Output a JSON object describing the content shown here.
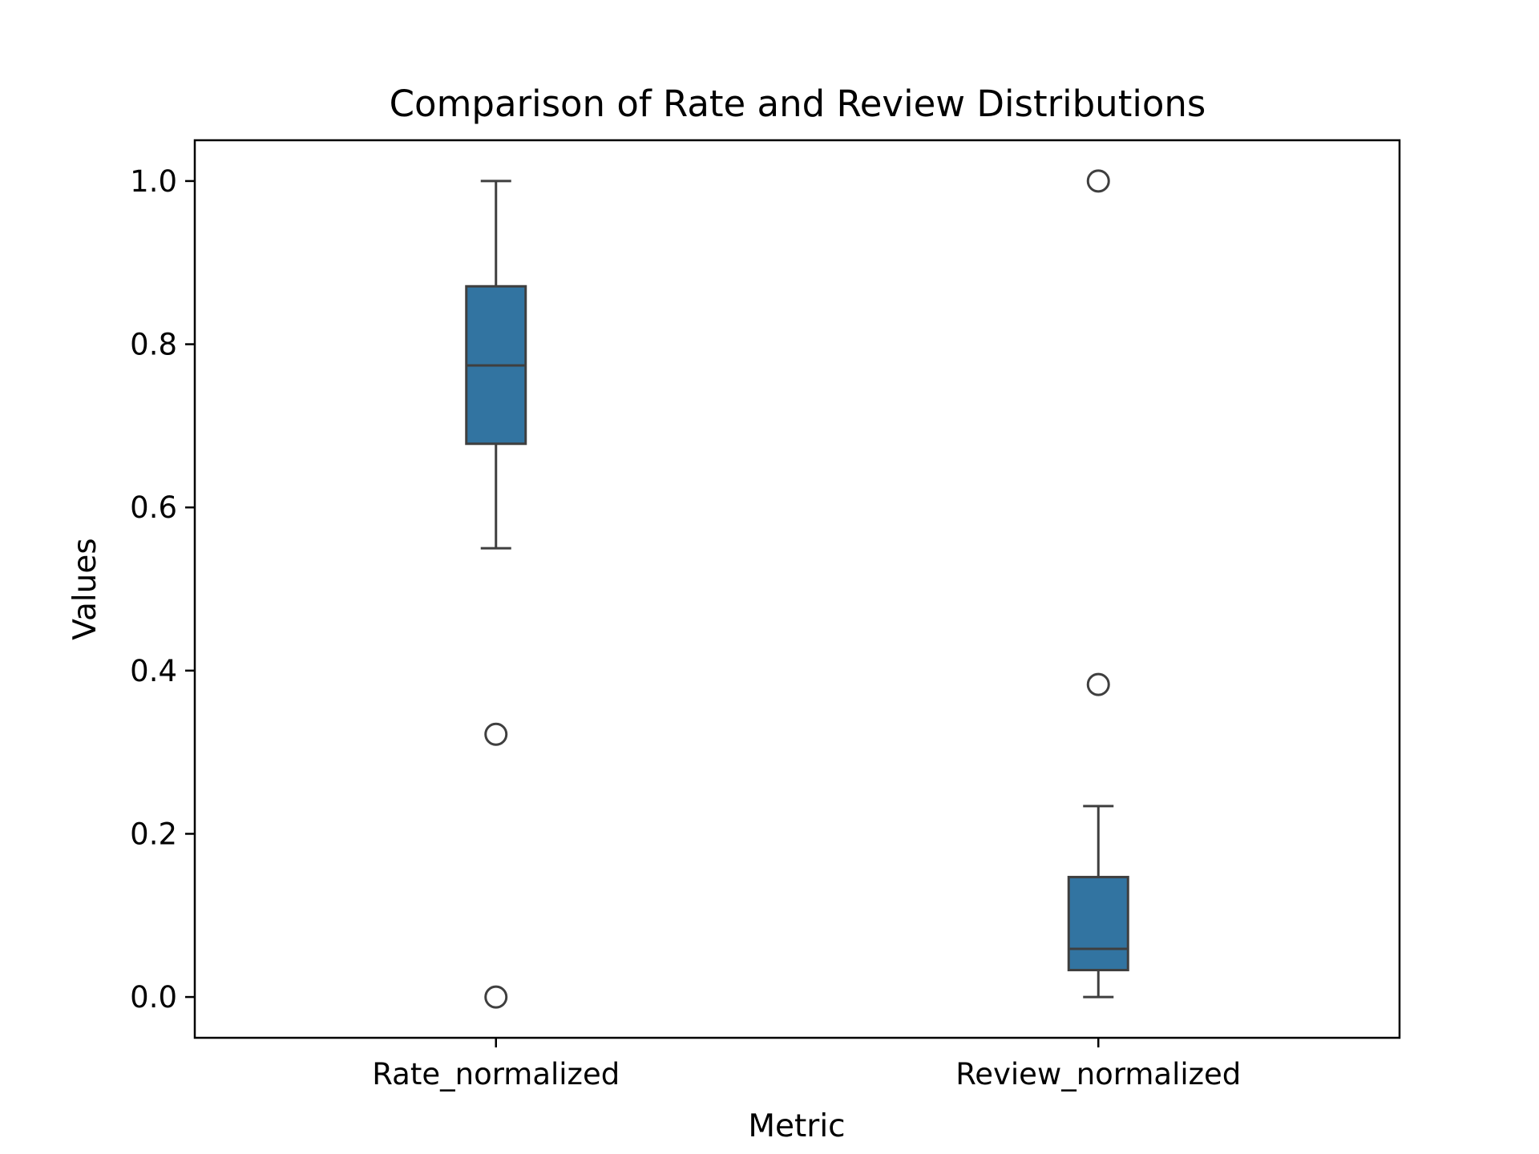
{
  "chart_data": {
    "type": "box",
    "title": "Comparison of Rate and Review Distributions",
    "xlabel": "Metric",
    "ylabel": "Values",
    "ylim": [
      -0.05,
      1.05
    ],
    "yticks": [
      "0.0",
      "0.2",
      "0.4",
      "0.6",
      "0.8",
      "1.0"
    ],
    "ytick_values": [
      0.0,
      0.2,
      0.4,
      0.6,
      0.8,
      1.0
    ],
    "categories": [
      "Rate_normalized",
      "Review_normalized"
    ],
    "boxes": [
      {
        "category": "Rate_normalized",
        "whisker_low": 0.55,
        "q1": 0.678,
        "median": 0.774,
        "q3": 0.871,
        "whisker_high": 1.0,
        "outliers": [
          0.322,
          0.0
        ]
      },
      {
        "category": "Review_normalized",
        "whisker_low": 0.0,
        "q1": 0.033,
        "median": 0.059,
        "q3": 0.147,
        "whisker_high": 0.234,
        "outliers": [
          1.0,
          0.383
        ]
      }
    ],
    "grid": false,
    "colors": {
      "box_fill": "#3274a1",
      "line": "#3f3f3f",
      "axes": "#000000",
      "background": "#ffffff"
    }
  }
}
